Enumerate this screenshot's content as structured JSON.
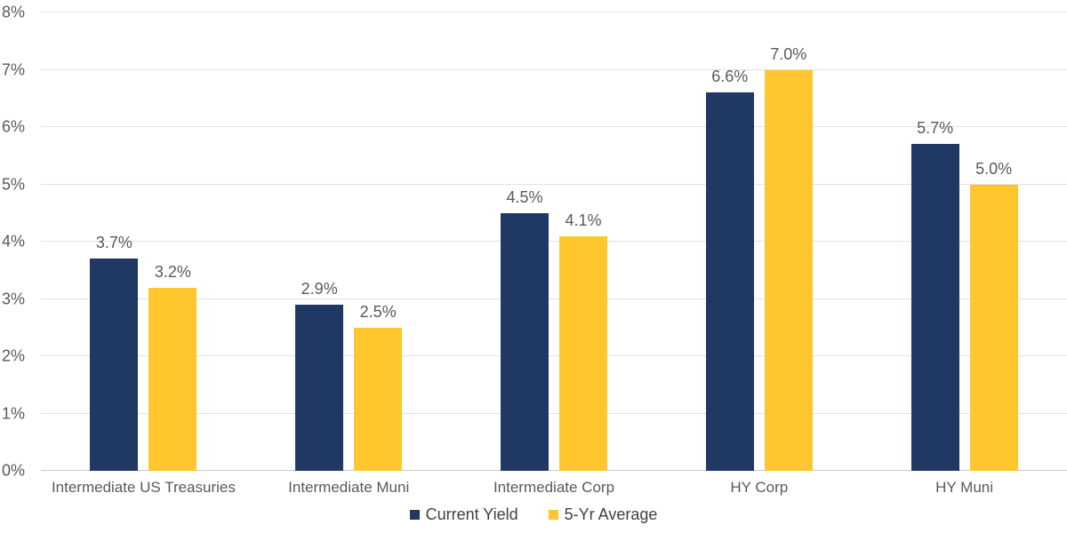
{
  "chart_data": {
    "type": "bar",
    "title": "",
    "categories": [
      "Intermediate US Treasuries",
      "Intermediate Muni",
      "Intermediate Corp",
      "HY Corp",
      "HY Muni"
    ],
    "series": [
      {
        "name": "Current Yield",
        "color": "#1F3864",
        "values": [
          3.7,
          2.9,
          4.5,
          6.6,
          5.7
        ],
        "labels": [
          "3.7%",
          "2.9%",
          "4.5%",
          "6.6%",
          "5.7%"
        ]
      },
      {
        "name": "5-Yr Average",
        "color": "#FFC62D",
        "values": [
          3.2,
          2.5,
          4.1,
          7.0,
          5.0
        ],
        "labels": [
          "3.2%",
          "2.5%",
          "4.1%",
          "7.0%",
          "5.0%"
        ]
      }
    ],
    "ylim": [
      0,
      8
    ],
    "ytick_labels": [
      "0%",
      "1%",
      "2%",
      "3%",
      "4%",
      "5%",
      "6%",
      "7%",
      "8%"
    ],
    "grid": true,
    "legend_position": "bottom",
    "styles": {
      "gridline_color": "#E2E2E2",
      "axis_line_color": "#C9C9C9",
      "tick_text_color": "#595959",
      "value_label_color": "#595959",
      "legend_text_color": "#404040"
    }
  }
}
